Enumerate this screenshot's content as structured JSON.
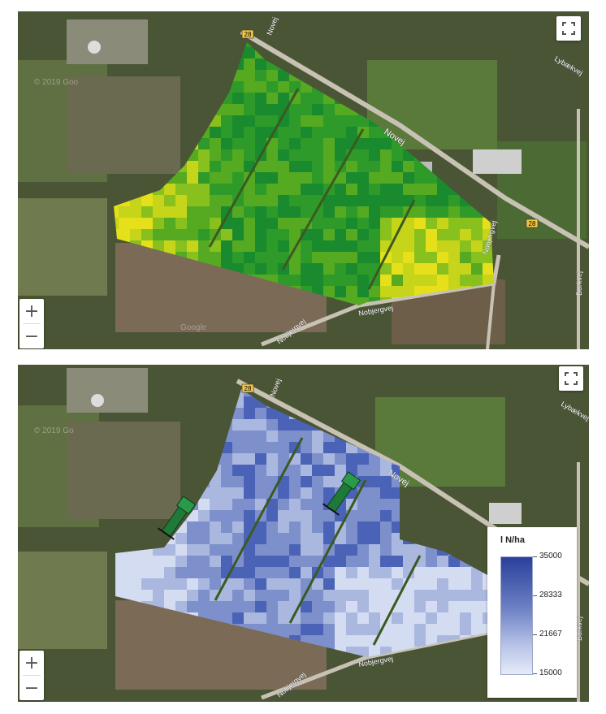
{
  "top_map": {
    "road_labels": [
      "Novej",
      "Novej",
      "Nobjergvej",
      "Nobjergvej",
      "Nobjergvej",
      "Borkvej",
      "Lybækvej"
    ],
    "route_shields": [
      "28",
      "28"
    ],
    "watermark": "© 2019 Goo",
    "watermark_2": "Google",
    "fullscreen_icon": "fullscreen-icon",
    "zoom_in_label": "+",
    "zoom_out_label": "−",
    "field_colors": [
      "#1a8a2e",
      "#2e9a2a",
      "#55aa22",
      "#88c01e",
      "#c6d41a",
      "#e6e01a"
    ]
  },
  "bottom_map": {
    "road_labels": [
      "Novej",
      "Novej",
      "Nobjergvej",
      "Nobjergvej",
      "Borkvej",
      "Lybækvej"
    ],
    "route_shields": [
      "28"
    ],
    "watermark": "© 2019 Go",
    "fullscreen_icon": "fullscreen-icon",
    "zoom_in_label": "+",
    "zoom_out_label": "−",
    "field_colors": [
      "#2a3f9a",
      "#4b63b6",
      "#7d90cc",
      "#aab8e0",
      "#d4dcf2"
    ],
    "tractor_icon": "tractor-sprayer-icon",
    "legend": {
      "title": "l N/ha",
      "ticks": [
        "35000",
        "28333",
        "21667",
        "15000"
      ],
      "min": 15000,
      "max": 35000
    }
  }
}
